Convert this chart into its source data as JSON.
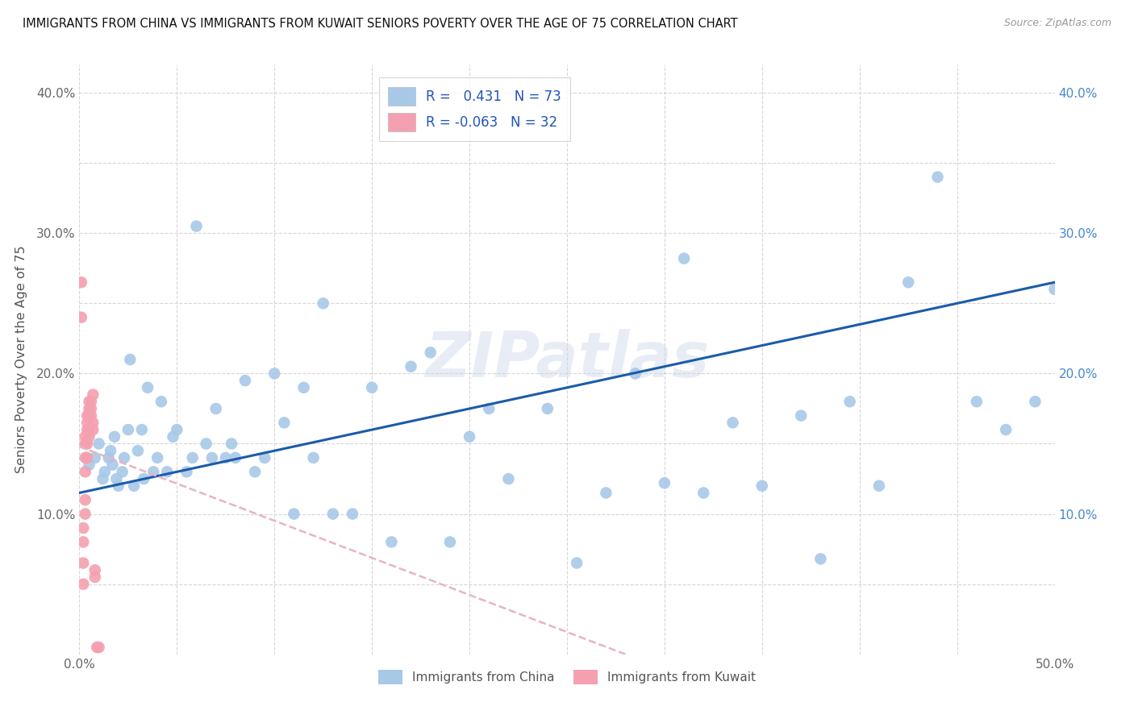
{
  "title": "IMMIGRANTS FROM CHINA VS IMMIGRANTS FROM KUWAIT SENIORS POVERTY OVER THE AGE OF 75 CORRELATION CHART",
  "source": "Source: ZipAtlas.com",
  "ylabel": "Seniors Poverty Over the Age of 75",
  "xlim": [
    0.0,
    0.5
  ],
  "ylim": [
    0.0,
    0.42
  ],
  "R_china": 0.431,
  "N_china": 73,
  "R_kuwait": -0.063,
  "N_kuwait": 32,
  "china_color": "#a8c8e8",
  "kuwait_color": "#f4a0b0",
  "trendline_china_color": "#1a5ca8",
  "trendline_kuwait_color": "#e8b4c0",
  "watermark": "ZIPatlas",
  "china_x": [
    0.005,
    0.008,
    0.01,
    0.012,
    0.013,
    0.015,
    0.016,
    0.017,
    0.018,
    0.019,
    0.02,
    0.022,
    0.023,
    0.025,
    0.026,
    0.028,
    0.03,
    0.032,
    0.033,
    0.035,
    0.038,
    0.04,
    0.042,
    0.045,
    0.048,
    0.05,
    0.055,
    0.058,
    0.06,
    0.065,
    0.068,
    0.07,
    0.075,
    0.078,
    0.08,
    0.085,
    0.09,
    0.095,
    0.1,
    0.105,
    0.11,
    0.115,
    0.12,
    0.125,
    0.13,
    0.14,
    0.15,
    0.16,
    0.17,
    0.18,
    0.19,
    0.2,
    0.21,
    0.22,
    0.24,
    0.255,
    0.27,
    0.285,
    0.3,
    0.31,
    0.32,
    0.335,
    0.35,
    0.37,
    0.38,
    0.395,
    0.41,
    0.425,
    0.44,
    0.46,
    0.475,
    0.49,
    0.5
  ],
  "china_y": [
    0.135,
    0.14,
    0.15,
    0.125,
    0.13,
    0.14,
    0.145,
    0.135,
    0.155,
    0.125,
    0.12,
    0.13,
    0.14,
    0.16,
    0.21,
    0.12,
    0.145,
    0.16,
    0.125,
    0.19,
    0.13,
    0.14,
    0.18,
    0.13,
    0.155,
    0.16,
    0.13,
    0.14,
    0.305,
    0.15,
    0.14,
    0.175,
    0.14,
    0.15,
    0.14,
    0.195,
    0.13,
    0.14,
    0.2,
    0.165,
    0.1,
    0.19,
    0.14,
    0.25,
    0.1,
    0.1,
    0.19,
    0.08,
    0.205,
    0.215,
    0.08,
    0.155,
    0.175,
    0.125,
    0.175,
    0.065,
    0.115,
    0.2,
    0.122,
    0.282,
    0.115,
    0.165,
    0.12,
    0.17,
    0.068,
    0.18,
    0.12,
    0.265,
    0.34,
    0.18,
    0.16,
    0.18,
    0.26
  ],
  "kuwait_x": [
    0.001,
    0.001,
    0.002,
    0.002,
    0.002,
    0.002,
    0.003,
    0.003,
    0.003,
    0.003,
    0.003,
    0.003,
    0.004,
    0.004,
    0.004,
    0.004,
    0.004,
    0.005,
    0.005,
    0.005,
    0.005,
    0.005,
    0.006,
    0.006,
    0.006,
    0.007,
    0.007,
    0.007,
    0.008,
    0.008,
    0.009,
    0.01
  ],
  "kuwait_y": [
    0.265,
    0.24,
    0.05,
    0.065,
    0.08,
    0.09,
    0.1,
    0.11,
    0.13,
    0.14,
    0.15,
    0.155,
    0.14,
    0.15,
    0.16,
    0.165,
    0.17,
    0.155,
    0.16,
    0.17,
    0.175,
    0.18,
    0.17,
    0.175,
    0.18,
    0.16,
    0.165,
    0.185,
    0.055,
    0.06,
    0.005,
    0.005
  ],
  "trendline_china_x0": 0.0,
  "trendline_china_x1": 0.5,
  "trendline_china_y0": 0.115,
  "trendline_china_y1": 0.265,
  "trendline_kuwait_x0": 0.0,
  "trendline_kuwait_x1": 0.28,
  "trendline_kuwait_y0": 0.148,
  "trendline_kuwait_y1": 0.0
}
